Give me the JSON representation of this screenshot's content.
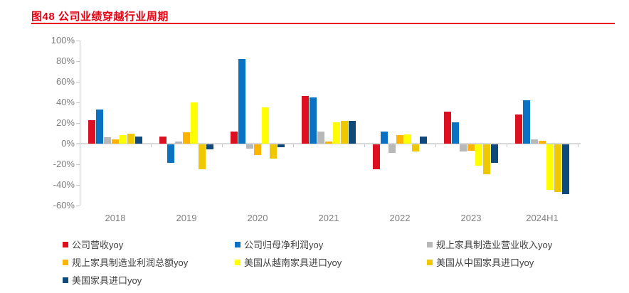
{
  "title": {
    "text": "图48  公司业绩穿越行业周期",
    "color": "#e60012"
  },
  "chart_data": {
    "type": "bar",
    "title": "公司业绩穿越行业周期",
    "categories": [
      "2018",
      "2019",
      "2020",
      "2021",
      "2022",
      "2023",
      "2024H1"
    ],
    "series": [
      {
        "name": "公司营收yoy",
        "color": "#dd1021",
        "values": [
          23,
          7,
          12,
          46,
          -24,
          31,
          28
        ]
      },
      {
        "name": "公司归母净利润yoy",
        "color": "#0a72c2",
        "values": [
          33,
          -18,
          82,
          45,
          12,
          21,
          42
        ]
      },
      {
        "name": "规上家具制造业营业收入yoy",
        "color": "#b8b8b8",
        "values": [
          6,
          2,
          -4,
          12,
          -8,
          -7,
          4
        ]
      },
      {
        "name": "规上家具制造业利润总额yoy",
        "color": "#feb400",
        "values": [
          4,
          11,
          -10,
          2,
          8,
          -6,
          3
        ]
      },
      {
        "name": "美国从越南家具进口yoy",
        "color": "#ffff00",
        "values": [
          8,
          40,
          35,
          21,
          9,
          -21,
          -44
        ]
      },
      {
        "name": "美国从中国家具进口yoy",
        "color": "#f0c800",
        "values": [
          10,
          -24,
          -14,
          22,
          -7,
          -29,
          -46
        ]
      },
      {
        "name": "美国家具进口yoy",
        "color": "#0f4a7b",
        "values": [
          7,
          -5,
          -3,
          22,
          7,
          -18,
          -48
        ]
      }
    ],
    "ylim": [
      -60,
      100
    ],
    "ytick_step": 20,
    "ytick_labels": [
      "100%",
      "80%",
      "60%",
      "40%",
      "20%",
      "0%",
      "-20%",
      "-40%",
      "-60%"
    ],
    "xlabel": "",
    "ylabel": "",
    "grid": false,
    "legend_position": "bottom"
  }
}
